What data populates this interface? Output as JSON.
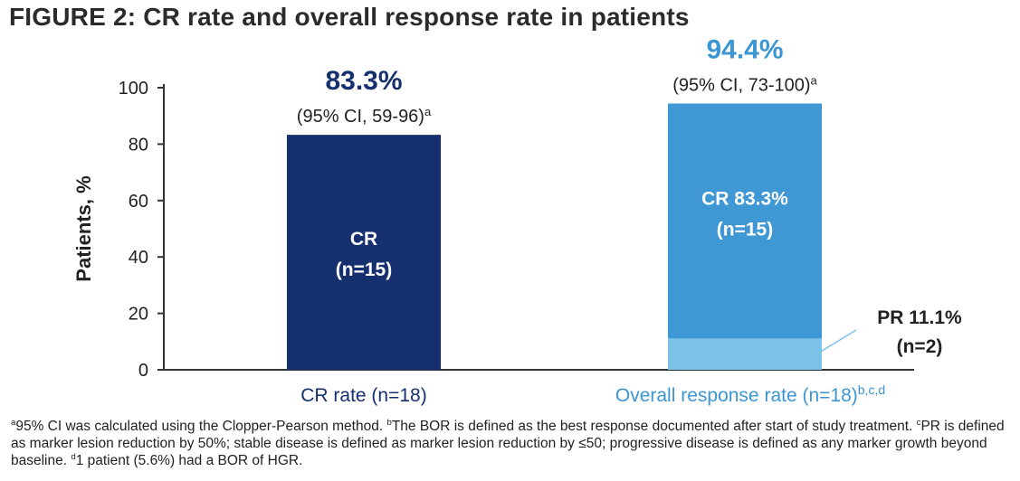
{
  "title": "FIGURE 2: CR rate and overall response rate in patients",
  "colors": {
    "cr_bar": "#16306f",
    "orr_cr": "#3f97d4",
    "orr_pr": "#7cc2e8",
    "axis": "#333333",
    "orr_text": "#3c96d3"
  },
  "chart_data": {
    "type": "bar",
    "stacked": true,
    "ylabel": "Patients, %",
    "ylim": [
      0,
      100
    ],
    "yticks": [
      "0",
      "20",
      "40",
      "60",
      "80",
      "100"
    ],
    "grid": false,
    "categories": [
      {
        "label": "CR rate (n=18)",
        "sup": ""
      },
      {
        "label": "Overall response rate (n=18)",
        "sup": "b,c,d"
      }
    ],
    "bars": [
      {
        "total_label": "83.3%",
        "ci_label": "(95% CI, 59-96)",
        "ci_sup": "a",
        "segments": [
          {
            "name": "CR",
            "value": 83.3,
            "label_line1": "CR",
            "label_line2": "(n=15)"
          }
        ]
      },
      {
        "total_label": "94.4%",
        "ci_label": "(95% CI, 73-100)",
        "ci_sup": "a",
        "segments": [
          {
            "name": "PR",
            "value": 11.1,
            "label_line1": "PR 11.1%",
            "label_line2": "(n=2)"
          },
          {
            "name": "CR",
            "value": 83.3,
            "label_line1": "CR 83.3%",
            "label_line2": "(n=15)"
          }
        ]
      }
    ]
  },
  "footnotes": [
    {
      "mark": "a",
      "text": "95% CI was calculated using the Clopper-Pearson method. "
    },
    {
      "mark": "b",
      "text": "The BOR is defined as the best response documented after start of study treatment. "
    },
    {
      "mark": "c",
      "text": "PR is defined as marker lesion reduction by 50%; stable disease is defined as marker lesion reduction by ≤50; progressive disease is defined as any marker growth beyond baseline. "
    },
    {
      "mark": "d",
      "text": "1 patient (5.6%) had a BOR of HGR."
    }
  ]
}
